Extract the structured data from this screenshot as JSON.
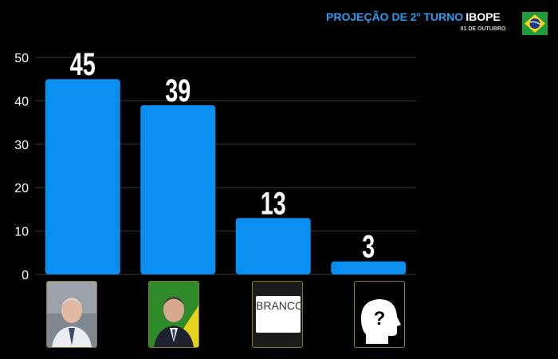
{
  "header": {
    "title_main": "PROJEÇÃO DE 2",
    "title_sup": "o",
    "title_end": " TURNO",
    "source": "IBOPE",
    "date": "01 DE OUTUBRO"
  },
  "icons": {
    "flag": "brazil-flag-icon",
    "unknown": "unknown-person-icon"
  },
  "colors": {
    "bar": "#0a8ef0",
    "title": "#2c9bf0",
    "background": "#000000"
  },
  "chart_data": {
    "type": "bar",
    "categories": [
      "",
      "",
      "BRANCO",
      ""
    ],
    "values": [
      45,
      39,
      13,
      3
    ],
    "title": "",
    "xlabel": "",
    "ylabel": "",
    "ylim": [
      0,
      50
    ],
    "yticks": [
      0,
      10,
      20,
      30,
      40,
      50
    ],
    "grid": true,
    "legend": "none"
  }
}
